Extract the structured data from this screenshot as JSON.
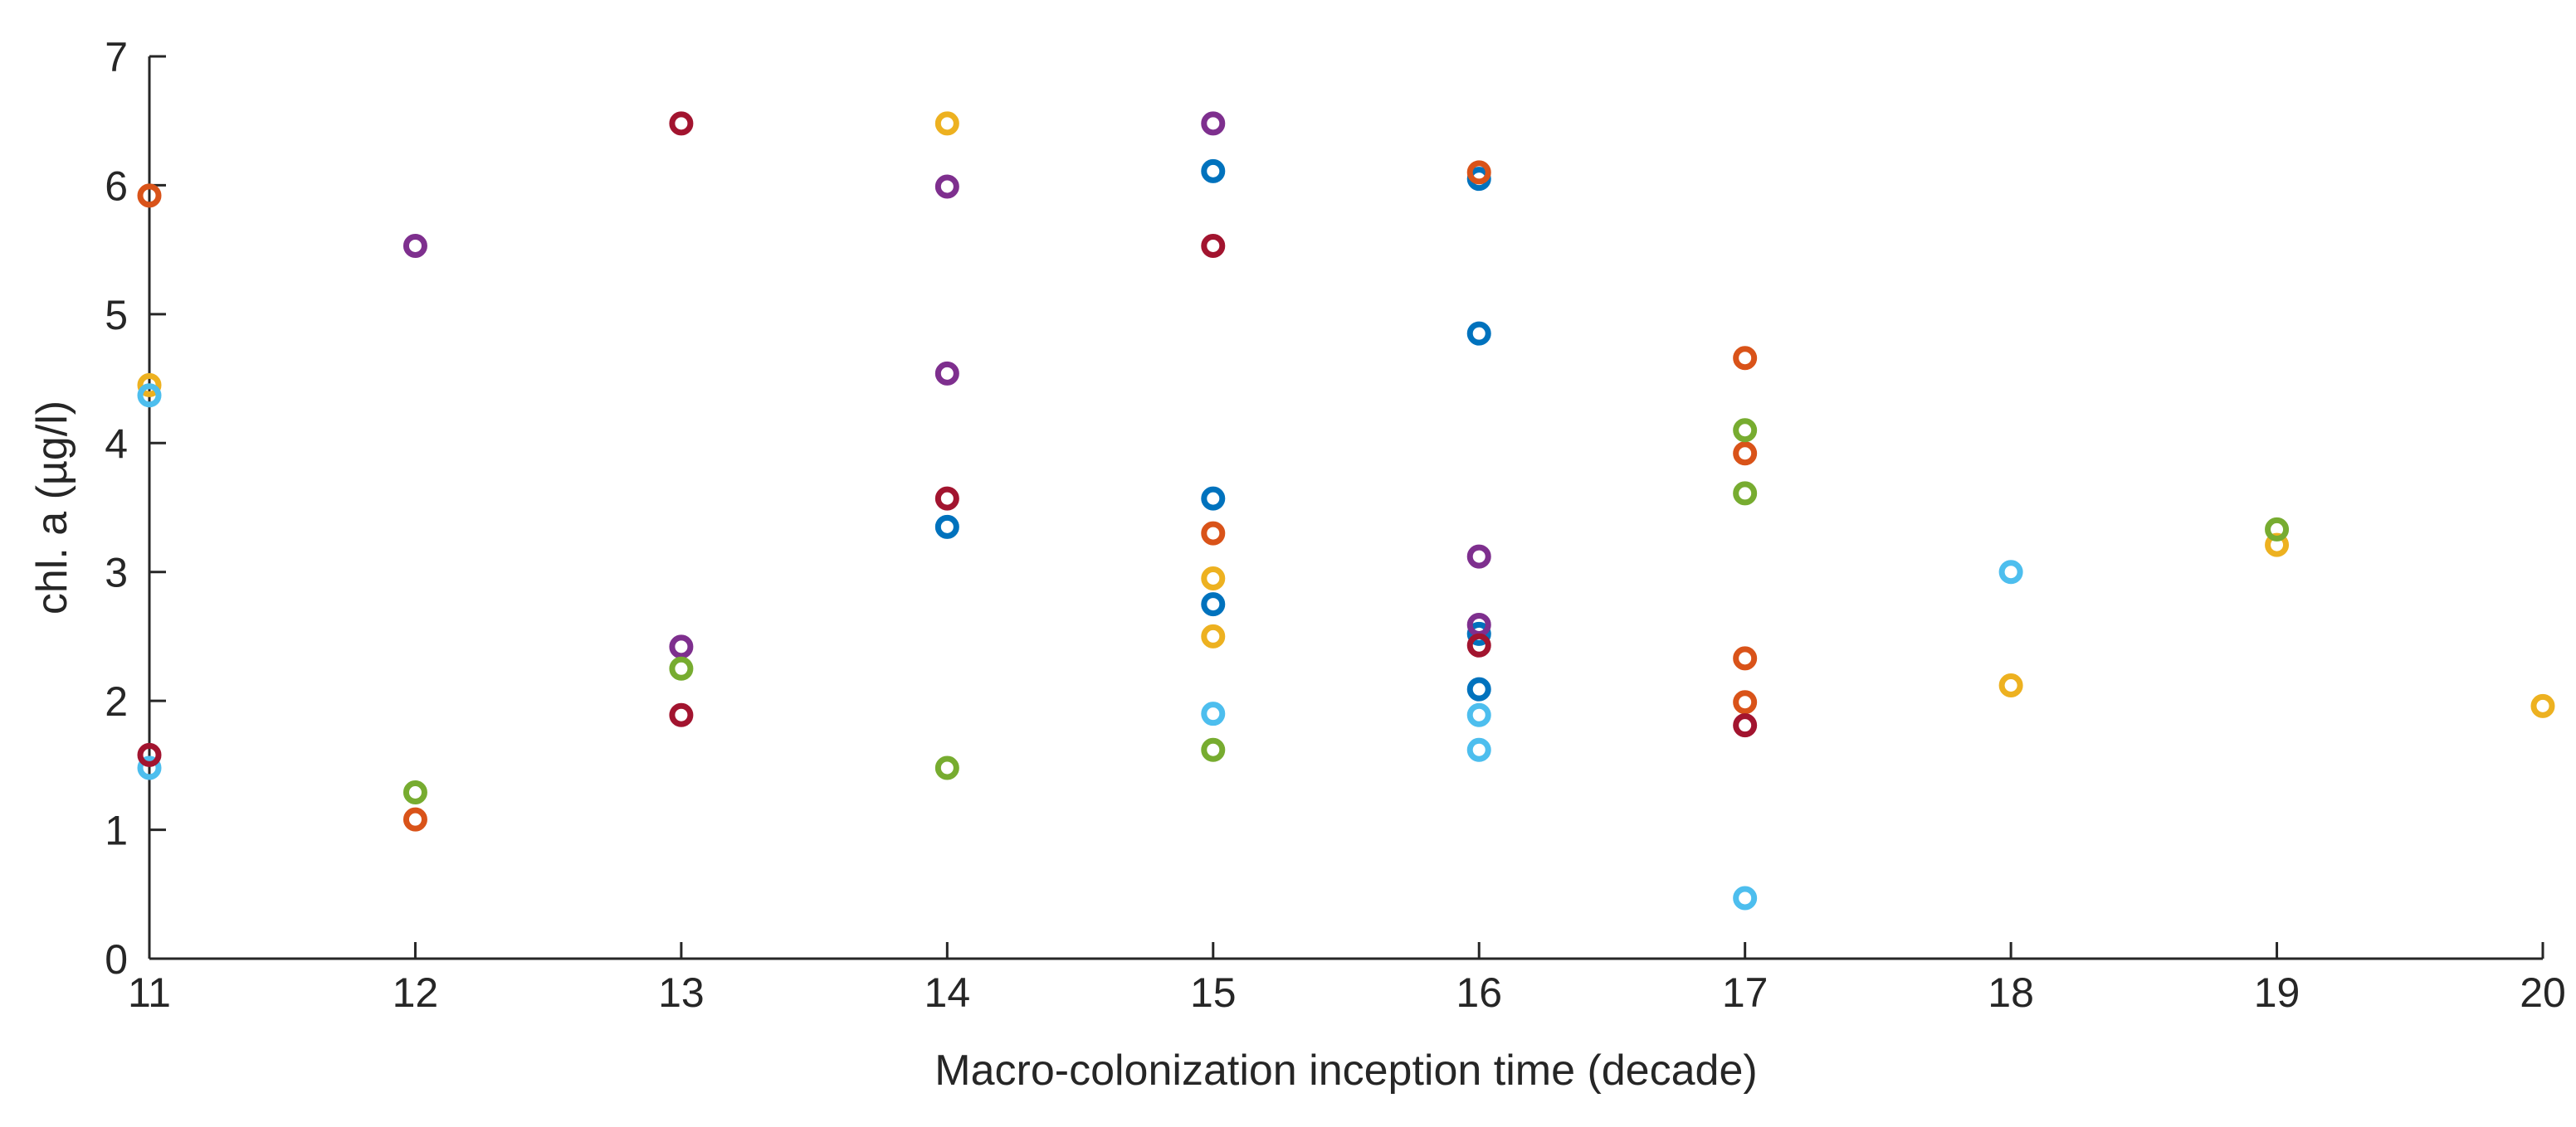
{
  "chart_data": {
    "type": "scatter",
    "title": "",
    "xlabel": "Macro-colonization inception time (decade)",
    "ylabel": "chl. a (µg/l)",
    "xlim": [
      11,
      20
    ],
    "ylim": [
      0,
      7
    ],
    "x_ticks": [
      "11",
      "12",
      "13",
      "14",
      "15",
      "16",
      "17",
      "18",
      "19",
      "20"
    ],
    "y_ticks": [
      "0",
      "1",
      "2",
      "3",
      "4",
      "5",
      "6",
      "7"
    ],
    "grid": false,
    "marker": "circle-open",
    "series": [
      {
        "name": "blue",
        "color": "#0072BD",
        "points": [
          [
            14,
            3.35
          ],
          [
            15,
            6.11
          ],
          [
            15,
            3.57
          ],
          [
            15,
            2.75
          ],
          [
            16,
            6.05
          ],
          [
            16,
            4.85
          ],
          [
            16,
            2.52
          ],
          [
            16,
            2.09
          ]
        ]
      },
      {
        "name": "orange",
        "color": "#D95319",
        "points": [
          [
            11,
            5.92
          ],
          [
            12,
            1.08
          ],
          [
            15,
            3.3
          ],
          [
            16,
            6.1
          ],
          [
            17,
            4.66
          ],
          [
            17,
            3.92
          ],
          [
            17,
            2.33
          ],
          [
            17,
            1.99
          ]
        ]
      },
      {
        "name": "yellow",
        "color": "#EDB120",
        "points": [
          [
            11,
            4.45
          ],
          [
            14,
            6.48
          ],
          [
            15,
            2.95
          ],
          [
            15,
            2.5
          ],
          [
            18,
            2.12
          ],
          [
            19,
            3.21
          ],
          [
            20,
            1.96
          ]
        ]
      },
      {
        "name": "purple",
        "color": "#7E2F8E",
        "points": [
          [
            12,
            5.53
          ],
          [
            13,
            2.42
          ],
          [
            14,
            5.99
          ],
          [
            14,
            4.54
          ],
          [
            15,
            6.48
          ],
          [
            16,
            3.12
          ],
          [
            16,
            2.59
          ]
        ]
      },
      {
        "name": "green",
        "color": "#77AC30",
        "points": [
          [
            12,
            1.29
          ],
          [
            13,
            2.25
          ],
          [
            14,
            1.48
          ],
          [
            15,
            1.62
          ],
          [
            17,
            4.1
          ],
          [
            17,
            3.61
          ],
          [
            19,
            3.33
          ]
        ]
      },
      {
        "name": "lightblue",
        "color": "#4DBEEE",
        "points": [
          [
            11,
            4.37
          ],
          [
            11,
            1.48
          ],
          [
            15,
            1.9
          ],
          [
            16,
            1.89
          ],
          [
            16,
            1.62
          ],
          [
            17,
            0.47
          ],
          [
            18,
            3.0
          ]
        ]
      },
      {
        "name": "darkred",
        "color": "#A2142F",
        "points": [
          [
            11,
            1.58
          ],
          [
            13,
            6.48
          ],
          [
            13,
            1.89
          ],
          [
            14,
            3.57
          ],
          [
            15,
            5.53
          ],
          [
            16,
            2.43
          ],
          [
            17,
            1.81
          ]
        ]
      }
    ]
  }
}
